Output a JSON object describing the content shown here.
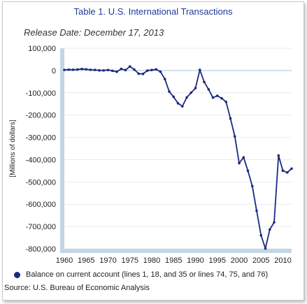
{
  "chart_data": {
    "type": "line",
    "title": "Table 1. U.S. International Transactions",
    "subtitle": "Release Date: December 17, 2013",
    "ylabel": "[Millions of dollars]",
    "xlabel": "",
    "xlim": [
      1960,
      2012
    ],
    "ylim": [
      -800000,
      100000
    ],
    "x_ticks": [
      1960,
      1965,
      1970,
      1975,
      1980,
      1985,
      1990,
      1995,
      2000,
      2005,
      2010
    ],
    "y_ticks": [
      100000,
      0,
      -100000,
      -200000,
      -300000,
      -400000,
      -500000,
      -600000,
      -700000,
      -800000
    ],
    "y_tick_labels": [
      "100,000",
      "0",
      "-100,000",
      "-200,000",
      "-300,000",
      "-400,000",
      "-500,000",
      "-600,000",
      "-700,000",
      "-800,000"
    ],
    "x_tick_labels": [
      "1960",
      "1965",
      "1970",
      "1975",
      "1980",
      "1985",
      "1990",
      "1995",
      "2000",
      "2005",
      "2010"
    ],
    "grid": "horizontal",
    "line_color": "#1a2a80",
    "series": [
      {
        "name": "Balance on current account (lines 1, 18, and 35 or lines 74, 75, and 76)",
        "x": [
          1960,
          1961,
          1962,
          1963,
          1964,
          1965,
          1966,
          1967,
          1968,
          1969,
          1970,
          1971,
          1972,
          1973,
          1974,
          1975,
          1976,
          1977,
          1978,
          1979,
          1980,
          1981,
          1982,
          1983,
          1984,
          1985,
          1986,
          1987,
          1988,
          1989,
          1990,
          1991,
          1992,
          1993,
          1994,
          1995,
          1996,
          1997,
          1998,
          1999,
          2000,
          2001,
          2002,
          2003,
          2004,
          2005,
          2006,
          2007,
          2008,
          2009,
          2010,
          2011,
          2012
        ],
        "values": [
          2824,
          3822,
          3387,
          4414,
          6823,
          5431,
          3031,
          2583,
          611,
          399,
          2331,
          -1433,
          -5795,
          7140,
          1962,
          18116,
          4295,
          -14335,
          -15143,
          -285,
          2317,
          5030,
          -5536,
          -38691,
          -94344,
          -118155,
          -147177,
          -160661,
          -121159,
          -99486,
          -78969,
          2897,
          -51613,
          -84806,
          -121612,
          -113567,
          -124764,
          -140726,
          -215062,
          -295530,
          -415999,
          -389780,
          -450080,
          -518633,
          -629258,
          -739803,
          -798478,
          -713389,
          -681343,
          -381636,
          -449470,
          -457725,
          -440418
        ]
      }
    ],
    "legend": "bottom-left",
    "source": "Source: U.S. Bureau of Economic Analysis"
  }
}
